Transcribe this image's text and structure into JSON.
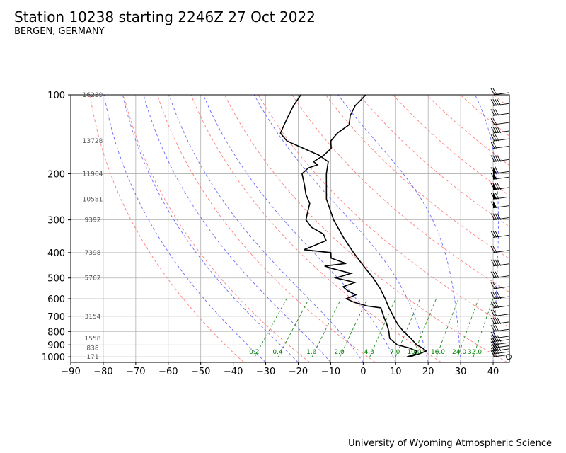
{
  "header": {
    "title": "Station 10238 starting 2246Z 27 Oct 2022",
    "subtitle": "BERGEN, GERMANY"
  },
  "footer": {
    "credit": "University of Wyoming Atmospheric Science"
  },
  "chart_data": {
    "type": "skew-t",
    "xlim": [
      -90,
      45
    ],
    "ylim_hpa": [
      1050,
      100
    ],
    "log_pressure_axis": true,
    "grid": true,
    "x_ticks": [
      "−90",
      "−80",
      "−70",
      "−60",
      "−50",
      "−40",
      "−30",
      "−20",
      "−10",
      "0",
      "10",
      "20",
      "30",
      "40"
    ],
    "x_tick_values": [
      -90,
      -80,
      -70,
      -60,
      -50,
      -40,
      -30,
      -20,
      -10,
      0,
      10,
      20,
      30,
      40
    ],
    "y_ticks": [
      "100",
      "200",
      "300",
      "400",
      "500",
      "600",
      "700",
      "800",
      "900",
      "1000"
    ],
    "y_tick_values": [
      100,
      200,
      300,
      400,
      500,
      600,
      700,
      800,
      900,
      1000
    ],
    "height_labels": [
      {
        "p": 100,
        "text": "16239"
      },
      {
        "p": 150,
        "text": "13728"
      },
      {
        "p": 200,
        "text": "11964"
      },
      {
        "p": 250,
        "text": "10581"
      },
      {
        "p": 300,
        "text": "9392"
      },
      {
        "p": 400,
        "text": "7398"
      },
      {
        "p": 500,
        "text": "5762"
      },
      {
        "p": 700,
        "text": "3154"
      },
      {
        "p": 850,
        "text": "1558"
      },
      {
        "p": 925,
        "text": "838"
      },
      {
        "p": 1000,
        "text": "171"
      }
    ],
    "mixing_ratio_labels": [
      "0.2",
      "0.4",
      "1.0",
      "2.0",
      "4.0",
      "7.0",
      "10.0",
      "16.0",
      "24.0",
      "32.0"
    ],
    "temperature": [
      [
        1000,
        12.5
      ],
      [
        975,
        15.0
      ],
      [
        950,
        16.5
      ],
      [
        925,
        14.5
      ],
      [
        900,
        12.0
      ],
      [
        850,
        8.5
      ],
      [
        800,
        4.5
      ],
      [
        750,
        0.8
      ],
      [
        700,
        -2.5
      ],
      [
        650,
        -6.0
      ],
      [
        600,
        -9.5
      ],
      [
        550,
        -13.5
      ],
      [
        500,
        -18.5
      ],
      [
        450,
        -24.5
      ],
      [
        400,
        -31.0
      ],
      [
        350,
        -38.0
      ],
      [
        300,
        -45.5
      ],
      [
        250,
        -53.0
      ],
      [
        200,
        -59.5
      ],
      [
        180,
        -62.0
      ],
      [
        170,
        -66.5
      ],
      [
        160,
        -73.0
      ],
      [
        150,
        -80.0
      ],
      [
        140,
        -84.0
      ],
      [
        130,
        -85.0
      ],
      [
        120,
        -86.0
      ],
      [
        110,
        -87.0
      ],
      [
        100,
        -87.5
      ]
    ],
    "dewpoint": [
      [
        1000,
        12.0
      ],
      [
        975,
        14.0
      ],
      [
        950,
        13.5
      ],
      [
        925,
        10.5
      ],
      [
        900,
        6.0
      ],
      [
        850,
        2.0
      ],
      [
        800,
        0.0
      ],
      [
        750,
        -2.5
      ],
      [
        700,
        -5.5
      ],
      [
        650,
        -8.5
      ],
      [
        640,
        -13.0
      ],
      [
        620,
        -18.0
      ],
      [
        600,
        -21.5
      ],
      [
        580,
        -19.5
      ],
      [
        560,
        -23.0
      ],
      [
        540,
        -25.5
      ],
      [
        520,
        -23.0
      ],
      [
        500,
        -30.0
      ],
      [
        480,
        -26.5
      ],
      [
        460,
        -33.5
      ],
      [
        450,
        -36.5
      ],
      [
        440,
        -30.5
      ],
      [
        420,
        -36.5
      ],
      [
        400,
        -38.0
      ],
      [
        390,
        -47.0
      ],
      [
        380,
        -45.5
      ],
      [
        360,
        -42.5
      ],
      [
        340,
        -45.0
      ],
      [
        320,
        -50.5
      ],
      [
        300,
        -54.0
      ],
      [
        280,
        -55.5
      ],
      [
        260,
        -57.0
      ],
      [
        240,
        -60.5
      ],
      [
        220,
        -63.5
      ],
      [
        200,
        -67.0
      ],
      [
        190,
        -66.5
      ],
      [
        185,
        -64.5
      ],
      [
        180,
        -66.5
      ],
      [
        170,
        -65.0
      ],
      [
        160,
        -64.5
      ],
      [
        150,
        -66.5
      ],
      [
        140,
        -66.5
      ],
      [
        130,
        -65.0
      ],
      [
        120,
        -67.0
      ],
      [
        110,
        -68.0
      ],
      [
        100,
        -67.5
      ]
    ],
    "wind_pressures": [
      1000,
      975,
      950,
      925,
      900,
      875,
      850,
      800,
      750,
      700,
      650,
      600,
      550,
      500,
      450,
      400,
      350,
      300,
      270,
      250,
      230,
      210,
      200,
      180,
      160,
      150,
      140,
      130,
      120,
      110,
      100
    ]
  },
  "colors": {
    "isotherm_skew": "#c0c0c0",
    "dry_adiabat": "#ff7f7f",
    "moist_adiabat": "#6a6aff",
    "mixing_ratio": "#228b22",
    "profile": "#000000"
  }
}
